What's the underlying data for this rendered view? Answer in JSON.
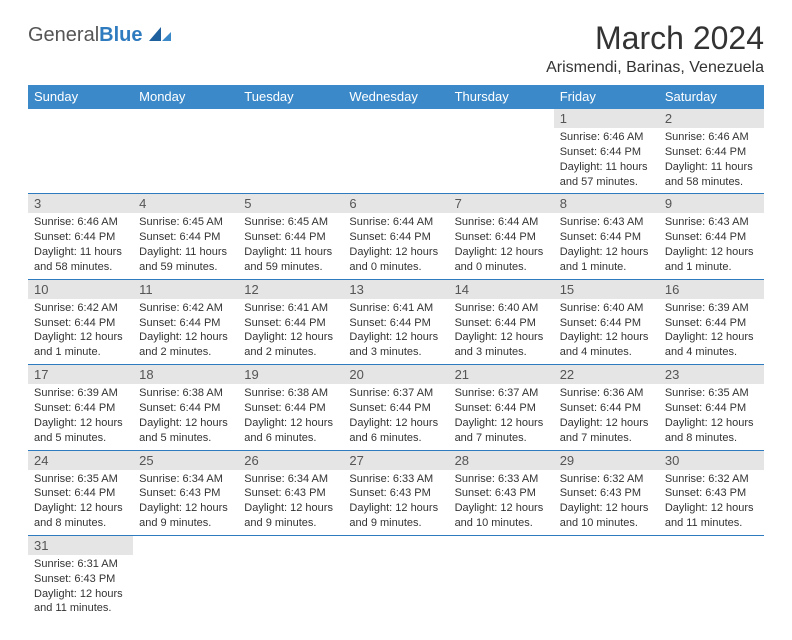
{
  "logo": {
    "text1": "General",
    "text2": "Blue"
  },
  "title": "March 2024",
  "location": "Arismendi, Barinas, Venezuela",
  "colors": {
    "header_bg": "#3b89c9",
    "header_text": "#ffffff",
    "daynum_bg": "#e5e5e5",
    "border": "#2f7bbf",
    "logo_blue": "#2f7bbf"
  },
  "day_headers": [
    "Sunday",
    "Monday",
    "Tuesday",
    "Wednesday",
    "Thursday",
    "Friday",
    "Saturday"
  ],
  "weeks": [
    [
      null,
      null,
      null,
      null,
      null,
      {
        "n": "1",
        "sunrise": "Sunrise: 6:46 AM",
        "sunset": "Sunset: 6:44 PM",
        "daylight": "Daylight: 11 hours and 57 minutes."
      },
      {
        "n": "2",
        "sunrise": "Sunrise: 6:46 AM",
        "sunset": "Sunset: 6:44 PM",
        "daylight": "Daylight: 11 hours and 58 minutes."
      }
    ],
    [
      {
        "n": "3",
        "sunrise": "Sunrise: 6:46 AM",
        "sunset": "Sunset: 6:44 PM",
        "daylight": "Daylight: 11 hours and 58 minutes."
      },
      {
        "n": "4",
        "sunrise": "Sunrise: 6:45 AM",
        "sunset": "Sunset: 6:44 PM",
        "daylight": "Daylight: 11 hours and 59 minutes."
      },
      {
        "n": "5",
        "sunrise": "Sunrise: 6:45 AM",
        "sunset": "Sunset: 6:44 PM",
        "daylight": "Daylight: 11 hours and 59 minutes."
      },
      {
        "n": "6",
        "sunrise": "Sunrise: 6:44 AM",
        "sunset": "Sunset: 6:44 PM",
        "daylight": "Daylight: 12 hours and 0 minutes."
      },
      {
        "n": "7",
        "sunrise": "Sunrise: 6:44 AM",
        "sunset": "Sunset: 6:44 PM",
        "daylight": "Daylight: 12 hours and 0 minutes."
      },
      {
        "n": "8",
        "sunrise": "Sunrise: 6:43 AM",
        "sunset": "Sunset: 6:44 PM",
        "daylight": "Daylight: 12 hours and 1 minute."
      },
      {
        "n": "9",
        "sunrise": "Sunrise: 6:43 AM",
        "sunset": "Sunset: 6:44 PM",
        "daylight": "Daylight: 12 hours and 1 minute."
      }
    ],
    [
      {
        "n": "10",
        "sunrise": "Sunrise: 6:42 AM",
        "sunset": "Sunset: 6:44 PM",
        "daylight": "Daylight: 12 hours and 1 minute."
      },
      {
        "n": "11",
        "sunrise": "Sunrise: 6:42 AM",
        "sunset": "Sunset: 6:44 PM",
        "daylight": "Daylight: 12 hours and 2 minutes."
      },
      {
        "n": "12",
        "sunrise": "Sunrise: 6:41 AM",
        "sunset": "Sunset: 6:44 PM",
        "daylight": "Daylight: 12 hours and 2 minutes."
      },
      {
        "n": "13",
        "sunrise": "Sunrise: 6:41 AM",
        "sunset": "Sunset: 6:44 PM",
        "daylight": "Daylight: 12 hours and 3 minutes."
      },
      {
        "n": "14",
        "sunrise": "Sunrise: 6:40 AM",
        "sunset": "Sunset: 6:44 PM",
        "daylight": "Daylight: 12 hours and 3 minutes."
      },
      {
        "n": "15",
        "sunrise": "Sunrise: 6:40 AM",
        "sunset": "Sunset: 6:44 PM",
        "daylight": "Daylight: 12 hours and 4 minutes."
      },
      {
        "n": "16",
        "sunrise": "Sunrise: 6:39 AM",
        "sunset": "Sunset: 6:44 PM",
        "daylight": "Daylight: 12 hours and 4 minutes."
      }
    ],
    [
      {
        "n": "17",
        "sunrise": "Sunrise: 6:39 AM",
        "sunset": "Sunset: 6:44 PM",
        "daylight": "Daylight: 12 hours and 5 minutes."
      },
      {
        "n": "18",
        "sunrise": "Sunrise: 6:38 AM",
        "sunset": "Sunset: 6:44 PM",
        "daylight": "Daylight: 12 hours and 5 minutes."
      },
      {
        "n": "19",
        "sunrise": "Sunrise: 6:38 AM",
        "sunset": "Sunset: 6:44 PM",
        "daylight": "Daylight: 12 hours and 6 minutes."
      },
      {
        "n": "20",
        "sunrise": "Sunrise: 6:37 AM",
        "sunset": "Sunset: 6:44 PM",
        "daylight": "Daylight: 12 hours and 6 minutes."
      },
      {
        "n": "21",
        "sunrise": "Sunrise: 6:37 AM",
        "sunset": "Sunset: 6:44 PM",
        "daylight": "Daylight: 12 hours and 7 minutes."
      },
      {
        "n": "22",
        "sunrise": "Sunrise: 6:36 AM",
        "sunset": "Sunset: 6:44 PM",
        "daylight": "Daylight: 12 hours and 7 minutes."
      },
      {
        "n": "23",
        "sunrise": "Sunrise: 6:35 AM",
        "sunset": "Sunset: 6:44 PM",
        "daylight": "Daylight: 12 hours and 8 minutes."
      }
    ],
    [
      {
        "n": "24",
        "sunrise": "Sunrise: 6:35 AM",
        "sunset": "Sunset: 6:44 PM",
        "daylight": "Daylight: 12 hours and 8 minutes."
      },
      {
        "n": "25",
        "sunrise": "Sunrise: 6:34 AM",
        "sunset": "Sunset: 6:43 PM",
        "daylight": "Daylight: 12 hours and 9 minutes."
      },
      {
        "n": "26",
        "sunrise": "Sunrise: 6:34 AM",
        "sunset": "Sunset: 6:43 PM",
        "daylight": "Daylight: 12 hours and 9 minutes."
      },
      {
        "n": "27",
        "sunrise": "Sunrise: 6:33 AM",
        "sunset": "Sunset: 6:43 PM",
        "daylight": "Daylight: 12 hours and 9 minutes."
      },
      {
        "n": "28",
        "sunrise": "Sunrise: 6:33 AM",
        "sunset": "Sunset: 6:43 PM",
        "daylight": "Daylight: 12 hours and 10 minutes."
      },
      {
        "n": "29",
        "sunrise": "Sunrise: 6:32 AM",
        "sunset": "Sunset: 6:43 PM",
        "daylight": "Daylight: 12 hours and 10 minutes."
      },
      {
        "n": "30",
        "sunrise": "Sunrise: 6:32 AM",
        "sunset": "Sunset: 6:43 PM",
        "daylight": "Daylight: 12 hours and 11 minutes."
      }
    ],
    [
      {
        "n": "31",
        "sunrise": "Sunrise: 6:31 AM",
        "sunset": "Sunset: 6:43 PM",
        "daylight": "Daylight: 12 hours and 11 minutes."
      },
      null,
      null,
      null,
      null,
      null,
      null
    ]
  ]
}
